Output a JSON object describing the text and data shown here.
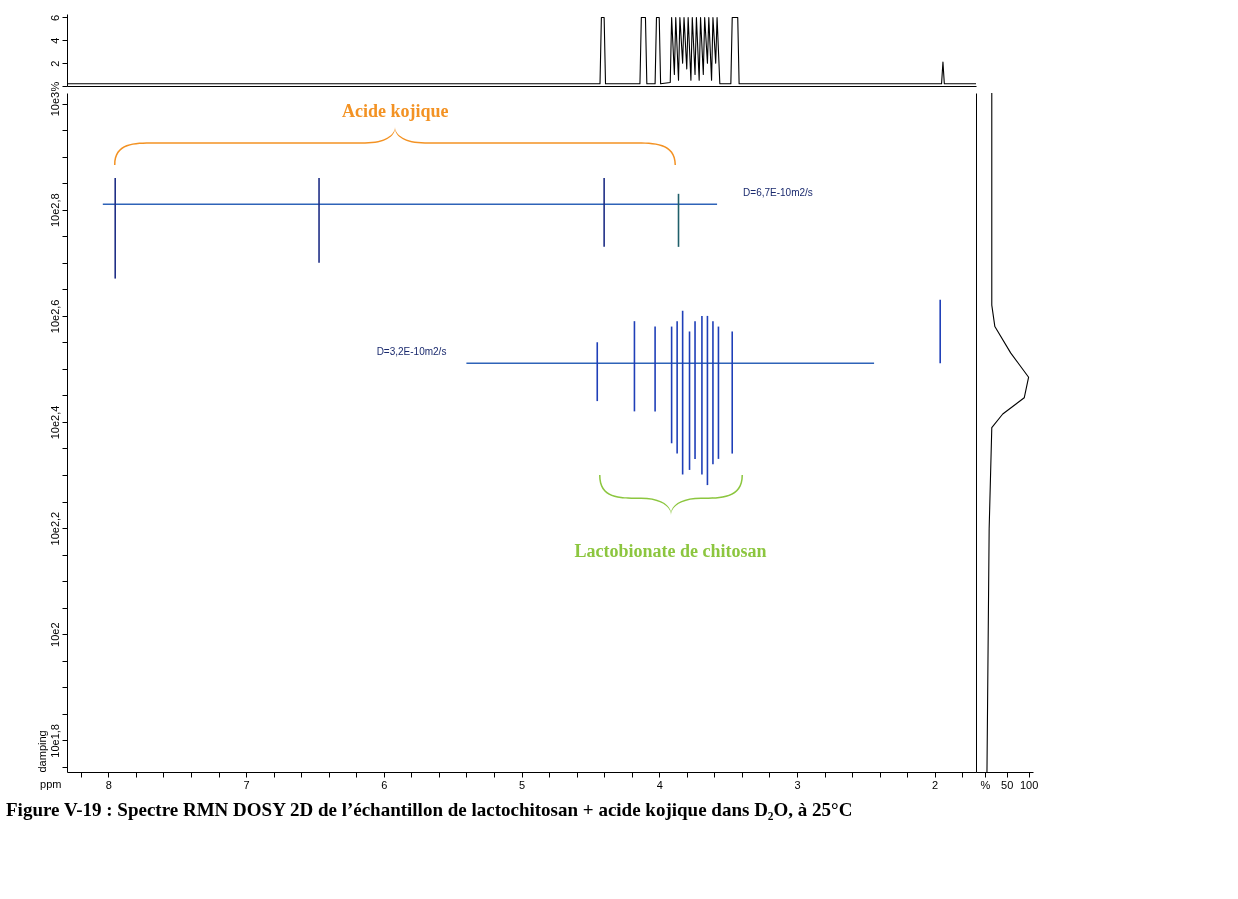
{
  "chart_data": [
    {
      "type": "line",
      "xlim": [
        8.3,
        1.7
      ],
      "ylim": [
        0,
        6.3
      ],
      "yticks": [
        {
          "value": 0,
          "label": "%"
        },
        2,
        4,
        6
      ],
      "tick_labels": "y",
      "series": [
        {
          "color": "#000000",
          "x": [
            8.3,
            4.43,
            4.42,
            4.4,
            4.39,
            4.14,
            4.13,
            4.1,
            4.09,
            4.03,
            4.02,
            4,
            3.99,
            3.92,
            3.91,
            3.89,
            3.88,
            3.86,
            3.85,
            3.83,
            3.82,
            3.8,
            3.79,
            3.77,
            3.76,
            3.74,
            3.73,
            3.71,
            3.7,
            3.68,
            3.67,
            3.65,
            3.64,
            3.62,
            3.61,
            3.59,
            3.58,
            3.56,
            3.48,
            3.47,
            3.43,
            3.42,
            1.95,
            1.94,
            1.93,
            1.7
          ],
          "values": [
            0.2,
            0.2,
            6,
            6,
            0.2,
            0.2,
            6,
            6,
            0.2,
            0.2,
            6,
            6,
            0.2,
            0.3,
            6,
            1,
            6,
            0.5,
            6,
            2,
            6,
            1.5,
            6,
            0.5,
            6,
            1,
            6,
            0.5,
            6,
            1,
            6,
            2,
            6,
            0.5,
            6,
            2,
            6,
            0.2,
            0.2,
            6,
            6,
            0.2,
            0.2,
            2.1,
            0.2,
            0.2
          ]
        }
      ]
    },
    {
      "type": "line",
      "xlabel": "ppm",
      "ylabel": "damping",
      "log": true,
      "xlim": [
        8.3,
        1.7
      ],
      "xticks": [
        {
          "value": 8.2,
          "label": null
        },
        8,
        {
          "value": 7.8,
          "label": null
        },
        {
          "value": 7.6,
          "label": null
        },
        {
          "value": 7.4,
          "label": null
        },
        {
          "value": 7.2,
          "label": null
        },
        7,
        {
          "value": 6.8,
          "label": null
        },
        {
          "value": 6.6,
          "label": null
        },
        {
          "value": 6.4,
          "label": null
        },
        {
          "value": 6.2,
          "label": null
        },
        6,
        {
          "value": 5.8,
          "label": null
        },
        {
          "value": 5.6,
          "label": null
        },
        {
          "value": 5.4,
          "label": null
        },
        {
          "value": 5.2,
          "label": null
        },
        5,
        {
          "value": 4.8,
          "label": null
        },
        {
          "value": 4.6,
          "label": null
        },
        {
          "value": 4.4,
          "label": null
        },
        {
          "value": 4.2,
          "label": null
        },
        4,
        {
          "value": 3.8,
          "label": null
        },
        {
          "value": 3.6,
          "label": null
        },
        {
          "value": 3.4,
          "label": null
        },
        {
          "value": 3.2,
          "label": null
        },
        3,
        {
          "value": 2.8,
          "label": null
        },
        {
          "value": 2.6,
          "label": null
        },
        {
          "value": 2.4,
          "label": null
        },
        {
          "value": 2.2,
          "label": null
        },
        2,
        {
          "value": 1.8,
          "label": null
        }
      ],
      "ylim": [
        550,
        10470
      ],
      "yticks": [
        {
          "value": 562,
          "label": null
        },
        {
          "value": 631,
          "label": "10e1,8"
        },
        {
          "value": 708,
          "label": null
        },
        {
          "value": 794,
          "label": null
        },
        {
          "value": 891,
          "label": null
        },
        {
          "value": 1000,
          "label": "10e2"
        },
        {
          "value": 1122,
          "label": null
        },
        {
          "value": 1259,
          "label": null
        },
        {
          "value": 1413,
          "label": null
        },
        {
          "value": 1585,
          "label": "10e2,2"
        },
        {
          "value": 1778,
          "label": null
        },
        {
          "value": 1995,
          "label": null
        },
        {
          "value": 2239,
          "label": null
        },
        {
          "value": 2512,
          "label": "10e2,4"
        },
        {
          "value": 2818,
          "label": null
        },
        {
          "value": 3162,
          "label": null
        },
        {
          "value": 3548,
          "label": null
        },
        {
          "value": 3981,
          "label": "10e2,6"
        },
        {
          "value": 4467,
          "label": null
        },
        {
          "value": 5012,
          "label": null
        },
        {
          "value": 5623,
          "label": null
        },
        {
          "value": 6310,
          "label": "10e2,8"
        },
        {
          "value": 7079,
          "label": null
        },
        {
          "value": 7943,
          "label": null
        },
        {
          "value": 8913,
          "label": null
        },
        {
          "value": 10000,
          "label": "10e3"
        }
      ],
      "annotations": [
        "Acide kojique",
        "Lactobionate de chitosan",
        "Figure V-19 : Spectre RMN DOSY 2D de l’échantillon de lactochitosan + acide kojique dans D₂O, à 25°C"
      ],
      "series": [
        {
          "name": "D=6,7E-10m2/s",
          "color": "#2e63b8",
          "x": [
            8.04,
            3.58
          ],
          "values": [
            6460,
            6460
          ]
        },
        {
          "name": "D=3,2E-10m2/s",
          "color": "#2e63b8",
          "x": [
            5.4,
            2.44
          ],
          "values": [
            3240,
            3240
          ]
        },
        {
          "color": "#1f2f86",
          "x": [
            7.95,
            7.95
          ],
          "values": [
            7240,
            4680
          ]
        },
        {
          "color": "#1f2f86",
          "x": [
            6.47,
            6.47
          ],
          "values": [
            7240,
            5010
          ]
        },
        {
          "color": "#1f2f86",
          "x": [
            4.4,
            4.4
          ],
          "values": [
            7240,
            5370
          ]
        },
        {
          "color": "#1f5f6a",
          "x": [
            3.86,
            3.86
          ],
          "values": [
            6760,
            5370
          ]
        },
        {
          "color": "#1f3fb8",
          "x": [
            4.45,
            4.45
          ],
          "values": [
            3550,
            2750
          ]
        },
        {
          "color": "#1f3fb8",
          "x": [
            4.18,
            4.18
          ],
          "values": [
            3890,
            2630
          ]
        },
        {
          "color": "#1f3fb8",
          "x": [
            4.03,
            4.03
          ],
          "values": [
            3800,
            2630
          ]
        },
        {
          "color": "#1f3fb8",
          "x": [
            3.91,
            3.91
          ],
          "values": [
            3800,
            2290
          ]
        },
        {
          "color": "#1f3fb8",
          "x": [
            3.87,
            3.87
          ],
          "values": [
            3890,
            2190
          ]
        },
        {
          "color": "#1f3fb8",
          "x": [
            3.83,
            3.83
          ],
          "values": [
            4070,
            2000
          ]
        },
        {
          "color": "#1f3fb8",
          "x": [
            3.78,
            3.78
          ],
          "values": [
            3720,
            2040
          ]
        },
        {
          "color": "#1f3fb8",
          "x": [
            3.74,
            3.74
          ],
          "values": [
            3890,
            2140
          ]
        },
        {
          "color": "#1f3fb8",
          "x": [
            3.69,
            3.69
          ],
          "values": [
            3980,
            2000
          ]
        },
        {
          "color": "#1f3fb8",
          "x": [
            3.65,
            3.65
          ],
          "values": [
            3980,
            1910
          ]
        },
        {
          "color": "#1f3fb8",
          "x": [
            3.61,
            3.61
          ],
          "values": [
            3890,
            2090
          ]
        },
        {
          "color": "#1f3fb8",
          "x": [
            3.57,
            3.57
          ],
          "values": [
            3800,
            2140
          ]
        },
        {
          "color": "#1f3fb8",
          "x": [
            3.47,
            3.47
          ],
          "values": [
            3720,
            2190
          ]
        },
        {
          "color": "#1f3fb8",
          "x": [
            1.96,
            1.96
          ],
          "values": [
            4270,
            3240
          ]
        }
      ]
    },
    {
      "type": "line",
      "log": true,
      "xlim": [
        -20,
        110
      ],
      "xticks": [
        {
          "value": 0,
          "label": "%"
        },
        50,
        100
      ],
      "ylim": [
        550,
        10470
      ],
      "tick_labels": "x",
      "series": [
        {
          "color": "#000000",
          "x": [
            16,
            16,
            23,
            59,
            100,
            90,
            41,
            16,
            10,
            5
          ],
          "values": [
            10470,
            4170,
            3800,
            3390,
            3050,
            2790,
            2600,
            2450,
            1580,
            550
          ]
        }
      ]
    }
  ]
}
